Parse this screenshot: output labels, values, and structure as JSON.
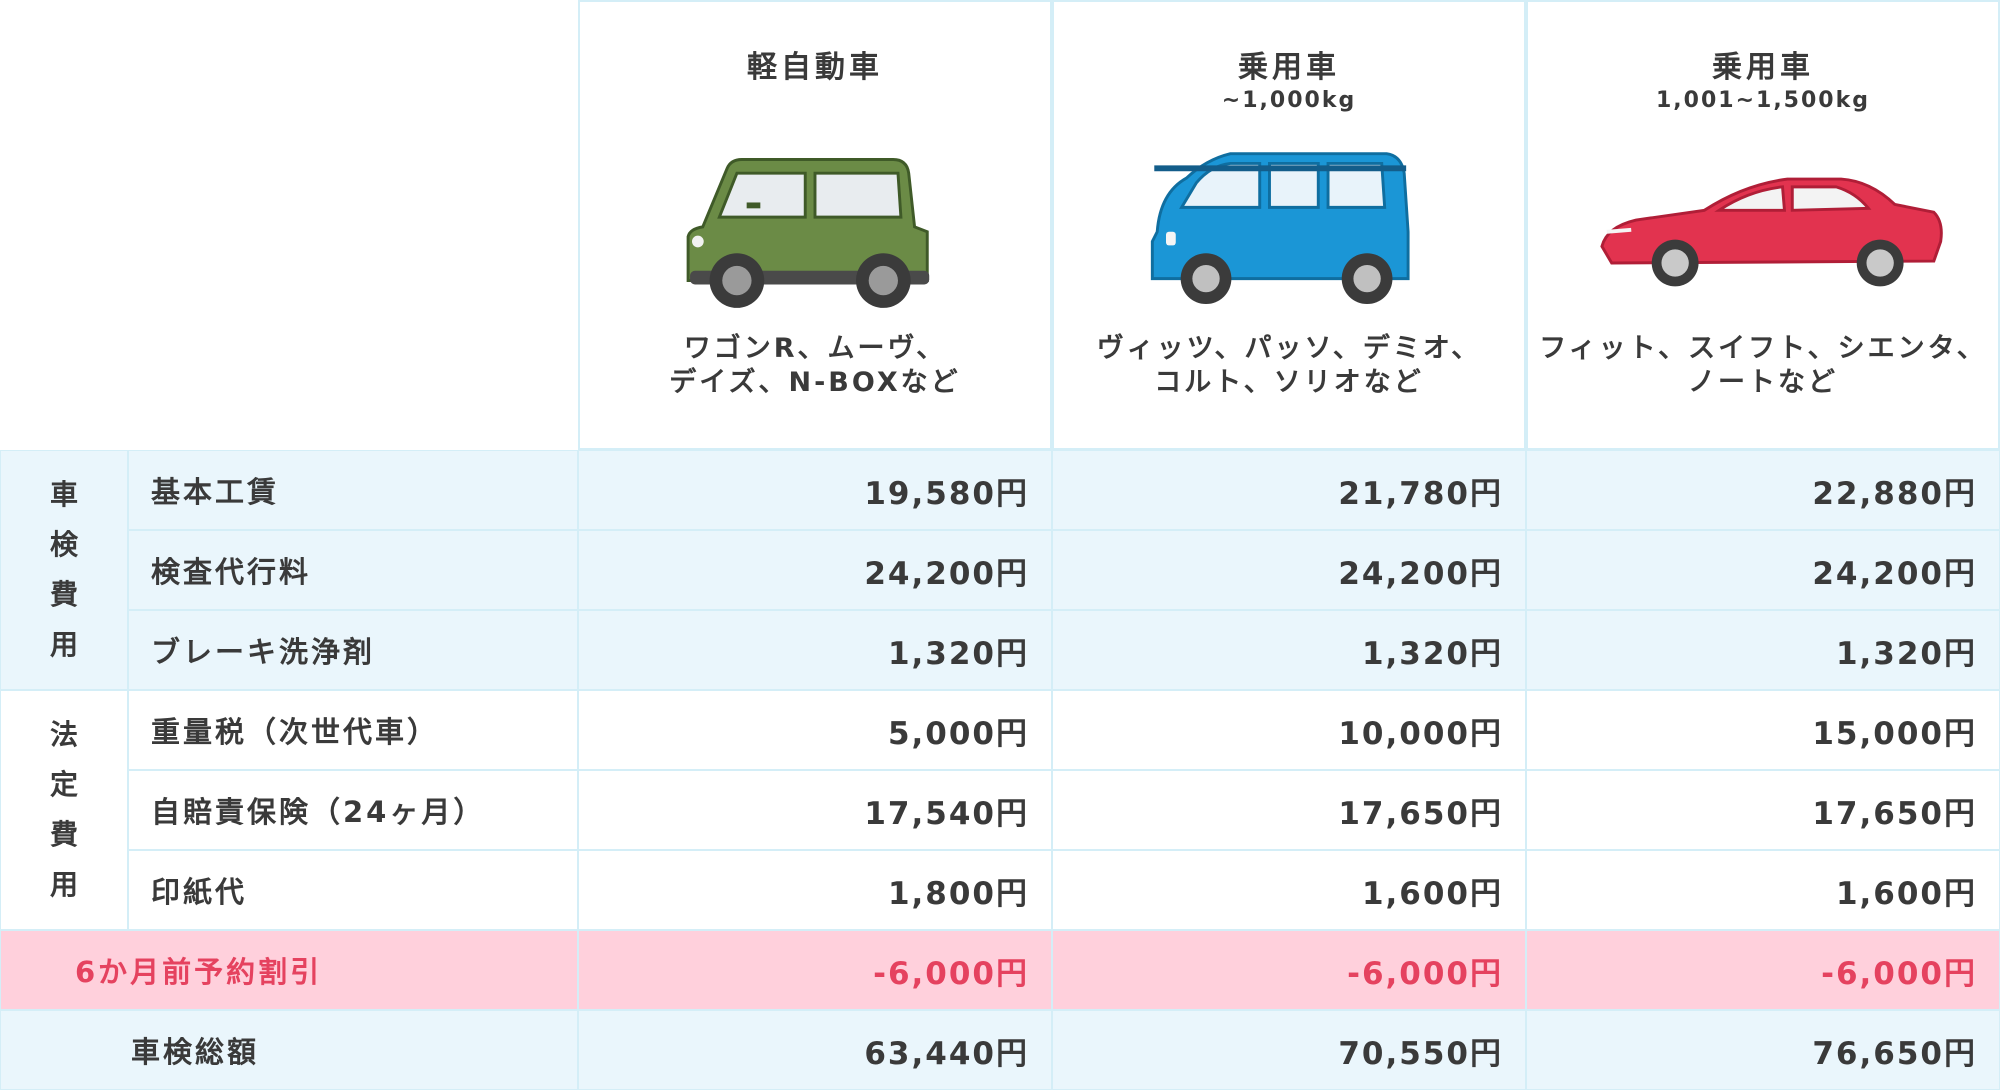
{
  "columns": [
    {
      "title": "軽自動車",
      "sub": "",
      "models_line1": "ワゴンR、ムーヴ、",
      "models_line2": "デイズ、N-BOXなど",
      "car_icon": "kei-car-icon",
      "car_color": "#6b8b46"
    },
    {
      "title": "乗用車",
      "sub": "~1,000kg",
      "models_line1": "ヴィッツ、パッソ、デミオ、",
      "models_line2": "コルト、ソリオなど",
      "car_icon": "compact-car-icon",
      "car_color": "#1b96d6"
    },
    {
      "title": "乗用車",
      "sub": "1,001~1,500kg",
      "models_line1": "フィット、スイフト、シエンタ、",
      "models_line2": "ノートなど",
      "car_icon": "sedan-car-icon",
      "car_color": "#e2334f"
    }
  ],
  "groups": {
    "inspection": {
      "label": "車検費用"
    },
    "legal": {
      "label": "法定費用"
    }
  },
  "rows": [
    {
      "label": "基本工賃",
      "values": [
        "19,580円",
        "21,780円",
        "22,880円"
      ]
    },
    {
      "label": "検査代行料",
      "values": [
        "24,200円",
        "24,200円",
        "24,200円"
      ]
    },
    {
      "label": "ブレーキ洗浄剤",
      "values": [
        "1,320円",
        "1,320円",
        "1,320円"
      ]
    },
    {
      "label": "重量税（次世代車）",
      "values": [
        "5,000円",
        "10,000円",
        "15,000円"
      ]
    },
    {
      "label": "自賠責保険（24ヶ月）",
      "values": [
        "17,540円",
        "17,650円",
        "17,650円"
      ]
    },
    {
      "label": "印紙代",
      "values": [
        "1,800円",
        "1,600円",
        "1,600円"
      ]
    }
  ],
  "discount": {
    "label": "6か月前予約割引",
    "values": [
      "-6,000円",
      "-6,000円",
      "-6,000円"
    ]
  },
  "total": {
    "label": "車検総額",
    "values": [
      "63,440円",
      "70,550円",
      "76,650円"
    ]
  },
  "colors": {
    "accent_blue": "#eaf6fc",
    "border": "#d4eef7",
    "discount_bg": "#ffd0dc",
    "discount_text": "#e5425f"
  }
}
